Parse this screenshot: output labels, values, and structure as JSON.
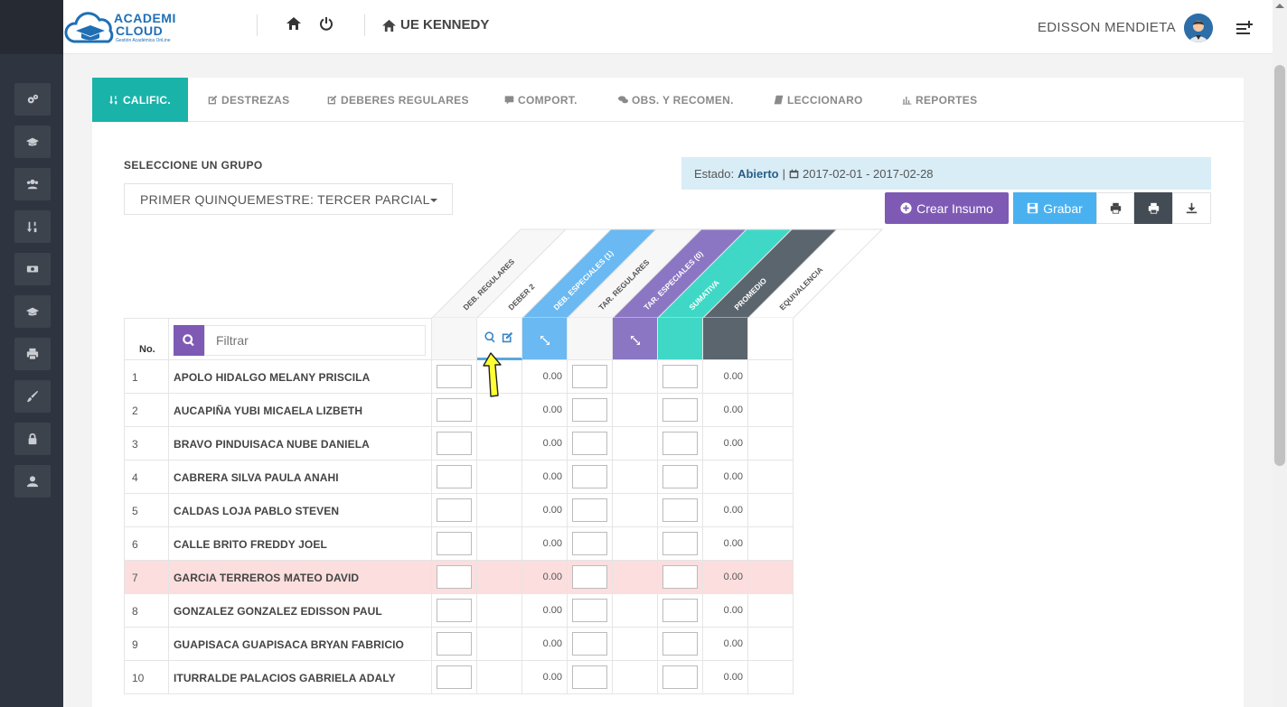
{
  "header": {
    "logo_line1": "ACADEMI",
    "logo_line2": "CLOUD",
    "logo_tagline": "Gestión Académica OnLine",
    "school_name": "UE KENNEDY",
    "user_name": "EDISSON MENDIETA"
  },
  "sidebar": {
    "items": [
      "gears-icon",
      "graduation-cap-icon",
      "users-icon",
      "sort-numeric-icon",
      "money-icon",
      "graduation-cap-icon",
      "print-icon",
      "brush-icon",
      "lock-icon",
      "user-icon"
    ]
  },
  "tabs": [
    {
      "label": "CALIFIC.",
      "icon": "sort-numeric-icon",
      "active": true
    },
    {
      "label": "DESTREZAS",
      "icon": "edit-icon",
      "active": false
    },
    {
      "label": "DEBERES REGULARES",
      "icon": "edit-icon",
      "active": false
    },
    {
      "label": "COMPORT.",
      "icon": "comment-icon",
      "active": false
    },
    {
      "label": "OBS. Y RECOMEN.",
      "icon": "comments-icon",
      "active": false
    },
    {
      "label": "LECCIONARO",
      "icon": "book-icon",
      "active": false
    },
    {
      "label": "REPORTES",
      "icon": "bar-chart-icon",
      "active": false
    }
  ],
  "group": {
    "label": "SELECCIONE UN GRUPO",
    "selected": "PRIMER QUINQUEMESTRE: TERCER PARCIAL"
  },
  "estado": {
    "label": "Estado:",
    "value": "Abierto",
    "separator": "|",
    "range": "2017-02-01 - 2017-02-28"
  },
  "actions": {
    "crear": "Crear Insumo",
    "grabar": "Grabar"
  },
  "table": {
    "no_label": "No.",
    "filter_placeholder": "Filtrar",
    "columns": [
      {
        "label": "DEB. REGULARES",
        "color": "#f7f7f7",
        "text_color": "#555555"
      },
      {
        "label": "DEBER 2",
        "color": "#ffffff",
        "text_color": "#555555"
      },
      {
        "label": "DEB. ESPECIALES (1)",
        "color": "#6ab9f2",
        "text_color": "#ffffff"
      },
      {
        "label": "TAR. REGULARES",
        "color": "#f7f7f7",
        "text_color": "#555555"
      },
      {
        "label": "TAR. ESPECIALES (0)",
        "color": "#8b76c4",
        "text_color": "#ffffff"
      },
      {
        "label": "SUMATIVA",
        "color": "#3fd8c6",
        "text_color": "#ffffff"
      },
      {
        "label": "PROMEDIO",
        "color": "#5b656e",
        "text_color": "#ffffff"
      },
      {
        "label": "EQUIVALENCIA",
        "color": "#ffffff",
        "text_color": "#555555"
      }
    ],
    "rows": [
      {
        "no": "1",
        "name": "APOLO HIDALGO MELANY PRISCILA",
        "deb_esp": "0.00",
        "promedio": "0.00",
        "highlight": false
      },
      {
        "no": "2",
        "name": "AUCAPIÑA YUBI MICAELA LIZBETH",
        "deb_esp": "0.00",
        "promedio": "0.00",
        "highlight": false
      },
      {
        "no": "3",
        "name": "BRAVO PINDUISACA NUBE DANIELA",
        "deb_esp": "0.00",
        "promedio": "0.00",
        "highlight": false
      },
      {
        "no": "4",
        "name": "CABRERA SILVA PAULA ANAHI",
        "deb_esp": "0.00",
        "promedio": "0.00",
        "highlight": false
      },
      {
        "no": "5",
        "name": "CALDAS LOJA PABLO STEVEN",
        "deb_esp": "0.00",
        "promedio": "0.00",
        "highlight": false
      },
      {
        "no": "6",
        "name": "CALLE BRITO FREDDY JOEL",
        "deb_esp": "0.00",
        "promedio": "0.00",
        "highlight": false
      },
      {
        "no": "7",
        "name": "GARCIA TERREROS MATEO DAVID",
        "deb_esp": "0.00",
        "promedio": "0.00",
        "highlight": true
      },
      {
        "no": "8",
        "name": "GONZALEZ GONZALEZ EDISSON PAUL",
        "deb_esp": "0.00",
        "promedio": "0.00",
        "highlight": false
      },
      {
        "no": "9",
        "name": "GUAPISACA GUAPISACA BRYAN FABRICIO",
        "deb_esp": "0.00",
        "promedio": "0.00",
        "highlight": false
      },
      {
        "no": "10",
        "name": "ITURRALDE PALACIOS GABRIELA ADALY",
        "deb_esp": "0.00",
        "promedio": "0.00",
        "highlight": false
      }
    ]
  },
  "colors": {
    "accent": "#1ab3aa",
    "purple": "#7e5ab5",
    "blue": "#4ab1f0",
    "dark": "#434b54",
    "highlight_row": "#fcdede",
    "pointer": "#ffff33"
  }
}
